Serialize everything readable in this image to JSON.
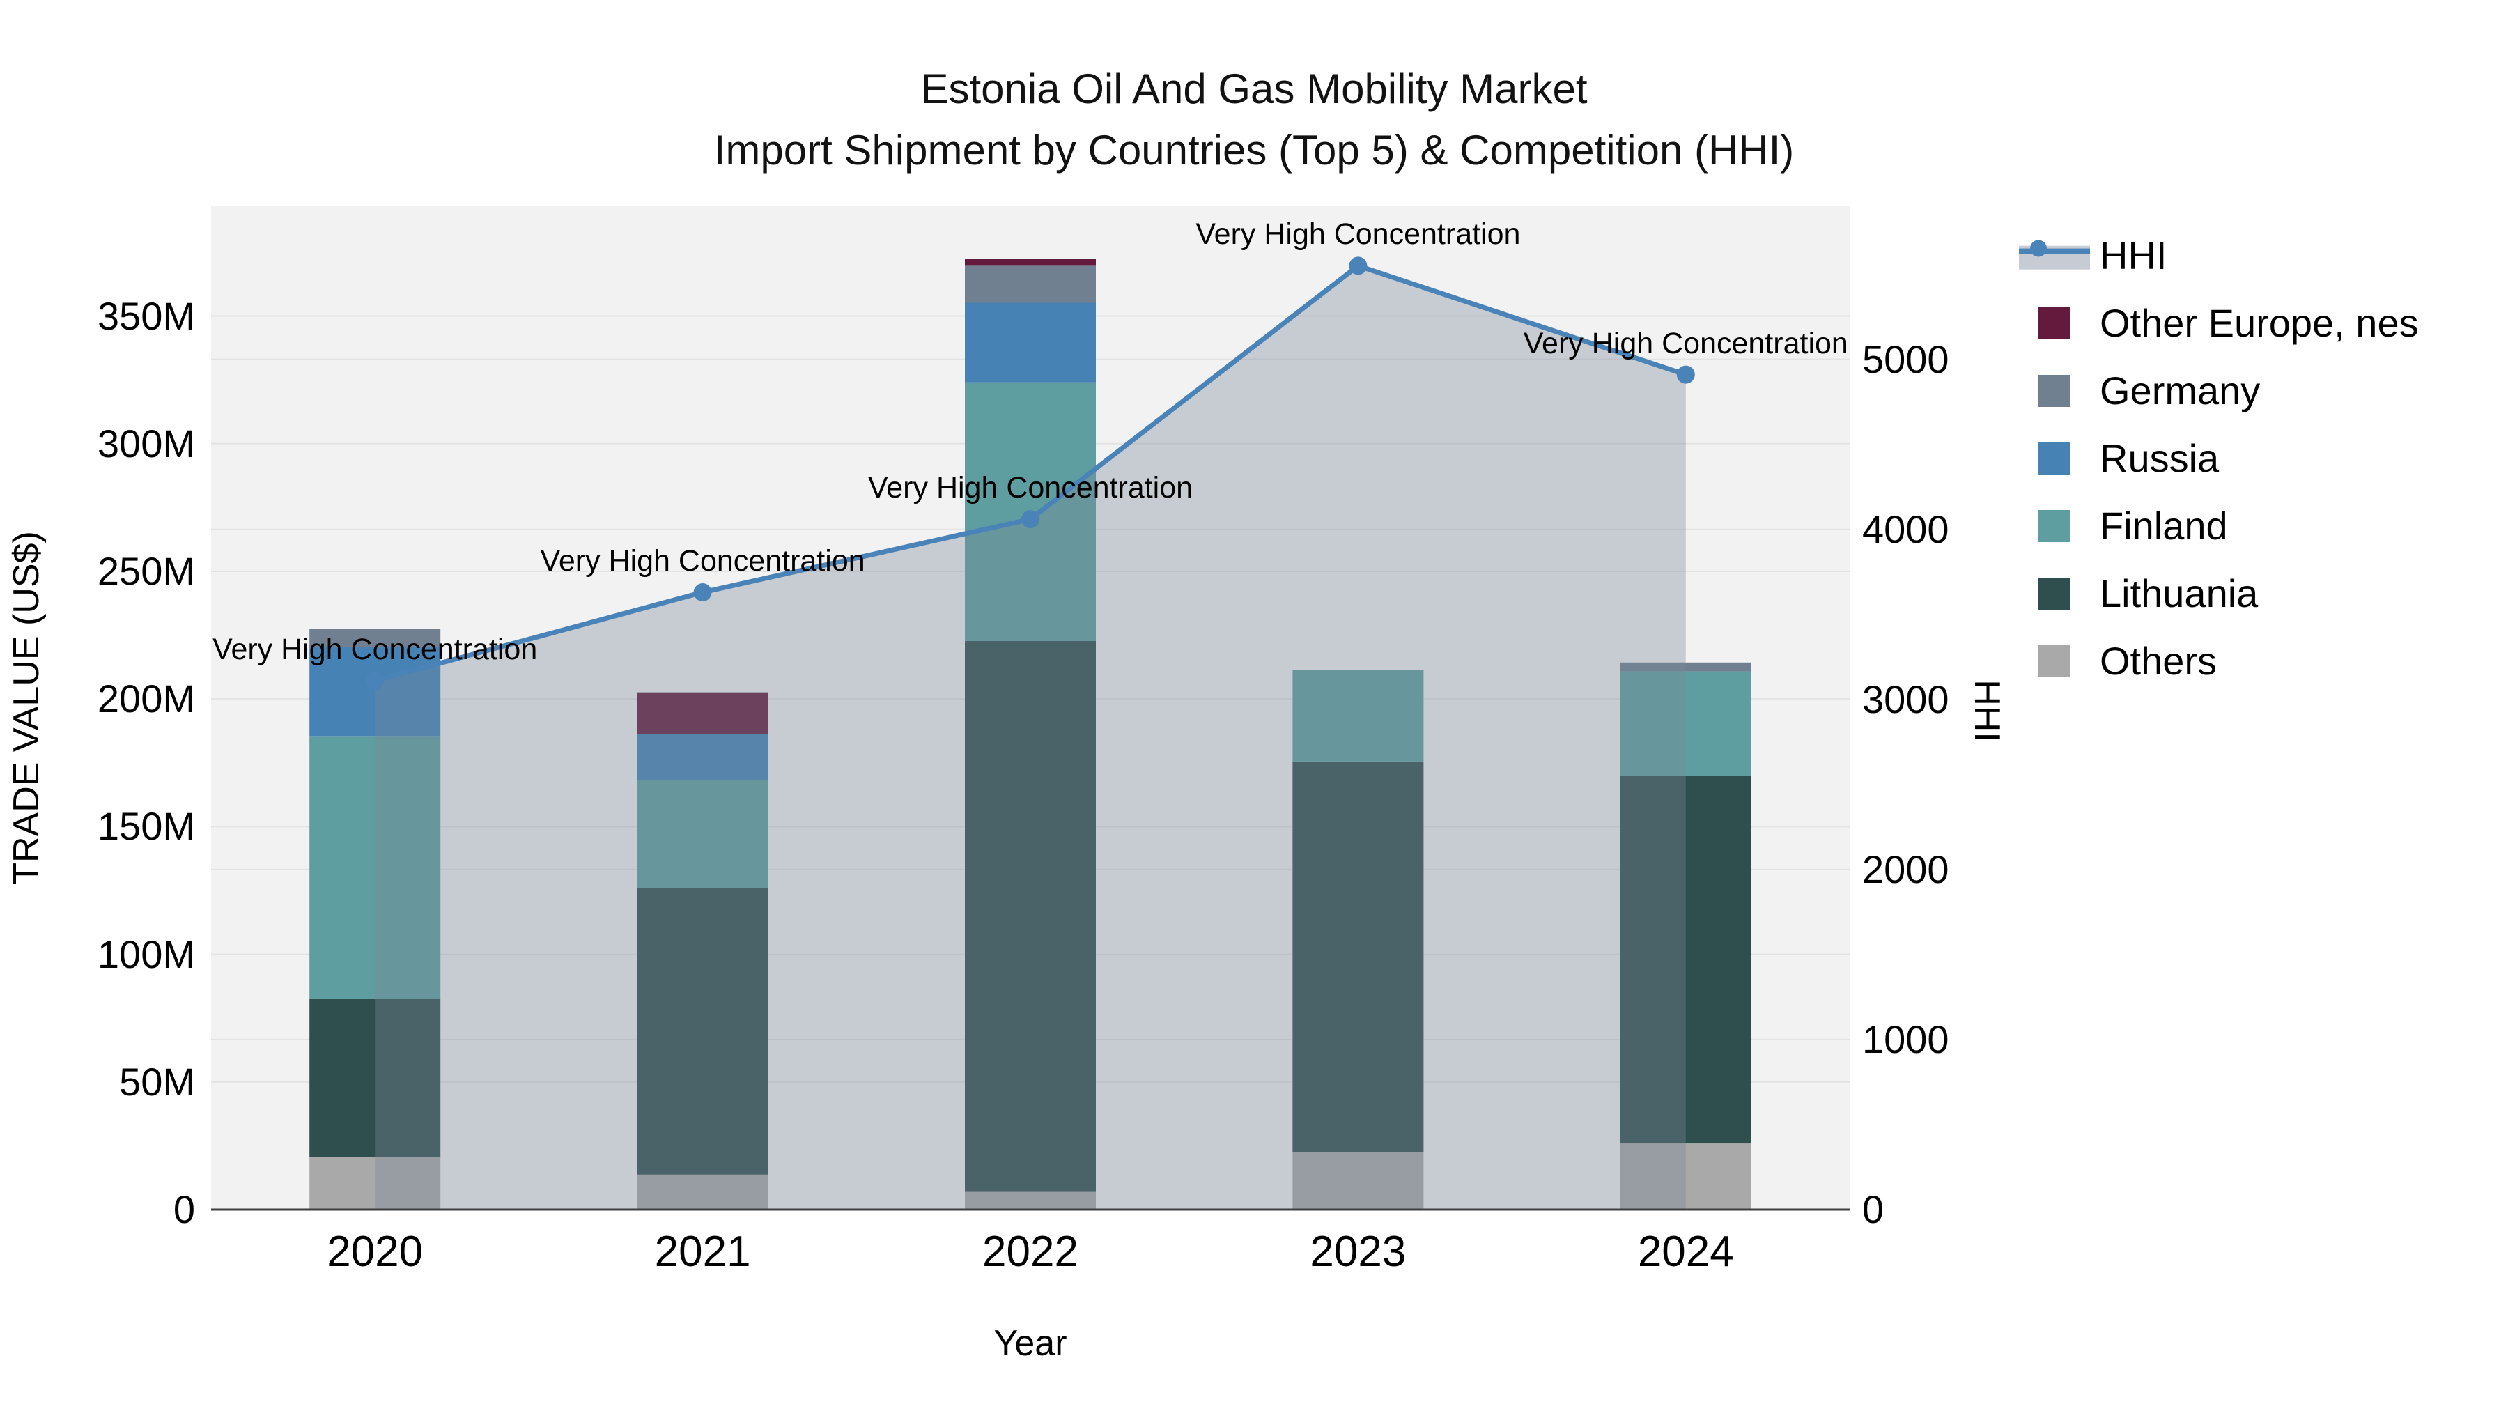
{
  "title": {
    "line1": "Estonia Oil And Gas Mobility Market",
    "line2": "Import Shipment by Countries (Top 5) & Competition (HHI)"
  },
  "axes": {
    "x": {
      "title": "Year",
      "categories": [
        "2020",
        "2021",
        "2022",
        "2023",
        "2024"
      ]
    },
    "y_left": {
      "title": "TRADE VALUE (US$)",
      "tick_labels": [
        "0",
        "50M",
        "100M",
        "150M",
        "200M",
        "250M",
        "300M",
        "350M"
      ],
      "tick_values": [
        0,
        50,
        100,
        150,
        200,
        250,
        300,
        350
      ],
      "max": 393
    },
    "y_right": {
      "title": "HHI",
      "tick_labels": [
        "0",
        "1000",
        "2000",
        "3000",
        "4000",
        "5000"
      ],
      "tick_values": [
        0,
        1000,
        2000,
        3000,
        4000,
        5000
      ],
      "max": 5900
    }
  },
  "legend": {
    "items": [
      {
        "label": "HHI",
        "type": "line",
        "color": "#4A83B8"
      },
      {
        "label": "Other Europe, nes",
        "type": "square",
        "color": "#641A3C"
      },
      {
        "label": "Germany",
        "type": "square",
        "color": "#708090"
      },
      {
        "label": "Russia",
        "type": "square",
        "color": "#4682B4"
      },
      {
        "label": "Finland",
        "type": "square",
        "color": "#5F9EA0"
      },
      {
        "label": "Lithuania",
        "type": "square",
        "color": "#2F4F4F"
      },
      {
        "label": "Others",
        "type": "square",
        "color": "#A9A9A9"
      }
    ]
  },
  "chart_data": {
    "type": "bar+line",
    "title": "Estonia Oil And Gas Mobility Market — Import Shipment by Countries (Top 5) & Competition (HHI)",
    "categories": [
      "2020",
      "2021",
      "2022",
      "2023",
      "2024"
    ],
    "bar_value_unit": "million US$ (left axis, TRADE VALUE)",
    "bar_series": [
      {
        "name": "Others",
        "color": "#A9A9A9",
        "values": [
          20.5,
          13.7,
          7.2,
          22.4,
          25.9
        ]
      },
      {
        "name": "Lithuania",
        "color": "#2F4F4F",
        "values": [
          62,
          112.3,
          215.5,
          153.1,
          143.9
        ]
      },
      {
        "name": "Finland",
        "color": "#5F9EA0",
        "values": [
          103,
          42.3,
          101.3,
          35.8,
          41
        ]
      },
      {
        "name": "Russia",
        "color": "#4682B4",
        "values": [
          35,
          18,
          31.2,
          0,
          0
        ]
      },
      {
        "name": "Germany",
        "color": "#708090",
        "values": [
          7,
          0,
          14.5,
          0,
          3.5
        ]
      },
      {
        "name": "Other Europe, nes",
        "color": "#641A3C",
        "values": [
          0,
          16.3,
          2.6,
          0,
          0
        ]
      }
    ],
    "bar_totals": [
      227.5,
      202.6,
      372.3,
      211.3,
      214.3
    ],
    "line_series": {
      "name": "HHI",
      "color": "#4A83B8",
      "fill_color": "rgba(119,136,153,0.36)",
      "values": [
        3110,
        3630,
        4060,
        5550,
        4910
      ]
    },
    "annotations": [
      {
        "x": "2020",
        "text": "Very High Concentration"
      },
      {
        "x": "2021",
        "text": "Very High Concentration"
      },
      {
        "x": "2022",
        "text": "Very High Concentration"
      },
      {
        "x": "2023",
        "text": "Very High Concentration"
      },
      {
        "x": "2024",
        "text": "Very High Concentration"
      }
    ],
    "ylim_left": [
      0,
      393
    ],
    "ylim_right": [
      0,
      5900
    ],
    "grid": true,
    "plot_background": "#F2F2F2",
    "grid_color": "#E3E3E3",
    "axis_line_color": "#3F3F3F",
    "legend_position": "right"
  }
}
